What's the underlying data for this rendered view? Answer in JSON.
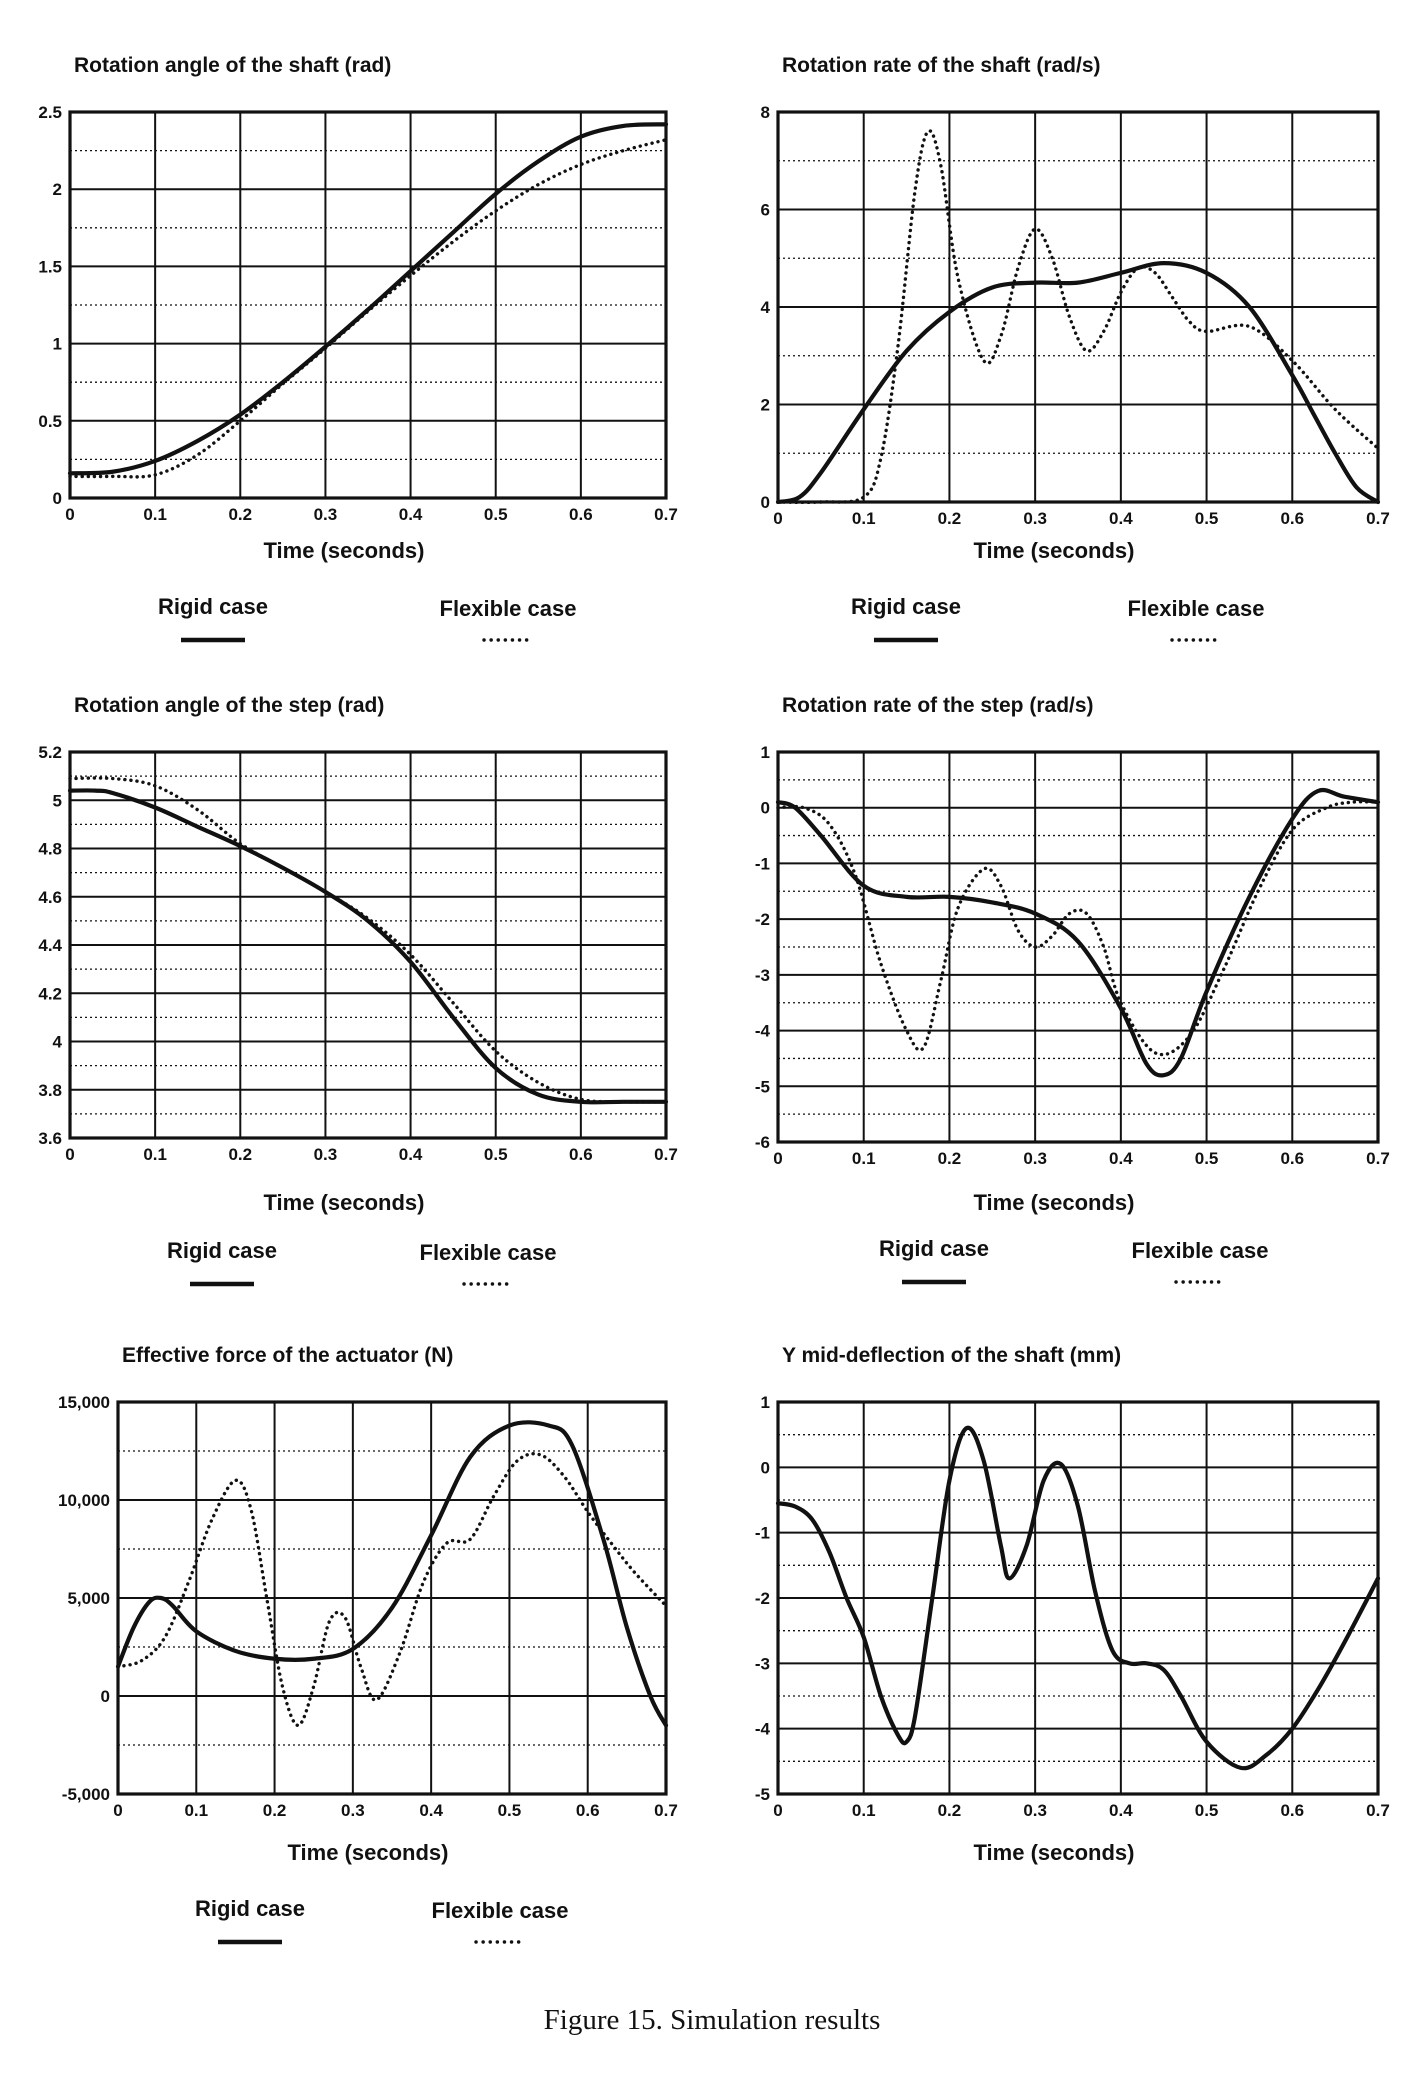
{
  "figure": {
    "caption": "Figure 15. Simulation results",
    "legend": {
      "rigid_label": "Rigid case",
      "flexible_label": "Flexible case"
    },
    "colors": {
      "ink": "#111111",
      "grid": "#111111",
      "background": "#ffffff"
    }
  },
  "chart_data": [
    {
      "type": "line",
      "title": "Rotation angle of the shaft (rad)",
      "xlabel": "Time (seconds)",
      "ylabel": "",
      "xlim": [
        0,
        0.7
      ],
      "ylim": [
        0,
        2.5
      ],
      "x_ticks": [
        0,
        0.1,
        0.2,
        0.3,
        0.4,
        0.5,
        0.6,
        0.7
      ],
      "x_tick_labels": [
        "0",
        "0.1",
        "0.2",
        "0.3",
        "0.4",
        "0.5",
        "0.6",
        "0.7"
      ],
      "y_ticks": [
        0,
        0.5,
        1,
        1.5,
        2,
        2.5
      ],
      "y_tick_labels": [
        "0",
        "0.5",
        "1",
        "1.5",
        "2",
        "2.5"
      ],
      "minor_y_step": 0.25,
      "legend": true,
      "series": [
        {
          "name": "Rigid case",
          "style": "solid",
          "x": [
            0,
            0.05,
            0.1,
            0.15,
            0.2,
            0.25,
            0.3,
            0.35,
            0.4,
            0.45,
            0.5,
            0.55,
            0.6,
            0.65,
            0.7
          ],
          "y": [
            0.16,
            0.17,
            0.24,
            0.37,
            0.54,
            0.75,
            0.98,
            1.22,
            1.47,
            1.72,
            1.97,
            2.18,
            2.34,
            2.41,
            2.42
          ]
        },
        {
          "name": "Flexible case",
          "style": "dotted",
          "x": [
            0,
            0.05,
            0.1,
            0.15,
            0.2,
            0.25,
            0.3,
            0.35,
            0.4,
            0.45,
            0.5,
            0.55,
            0.6,
            0.65,
            0.7
          ],
          "y": [
            0.14,
            0.14,
            0.15,
            0.28,
            0.5,
            0.74,
            0.97,
            1.21,
            1.44,
            1.66,
            1.86,
            2.03,
            2.16,
            2.25,
            2.32
          ]
        }
      ]
    },
    {
      "type": "line",
      "title": "Rotation rate of the shaft (rad/s)",
      "xlabel": "Time (seconds)",
      "ylabel": "",
      "xlim": [
        0,
        0.7
      ],
      "ylim": [
        0,
        8
      ],
      "x_ticks": [
        0,
        0.1,
        0.2,
        0.3,
        0.4,
        0.5,
        0.6,
        0.7
      ],
      "x_tick_labels": [
        "0",
        "0.1",
        "0.2",
        "0.3",
        "0.4",
        "0.5",
        "0.6",
        "0.7"
      ],
      "y_ticks": [
        0,
        2,
        4,
        6,
        8
      ],
      "y_tick_labels": [
        "0",
        "2",
        "4",
        "6",
        "8"
      ],
      "minor_y_step": 1,
      "legend": true,
      "series": [
        {
          "name": "Rigid case",
          "style": "solid",
          "x": [
            0,
            0.025,
            0.05,
            0.1,
            0.15,
            0.2,
            0.25,
            0.3,
            0.35,
            0.4,
            0.45,
            0.5,
            0.55,
            0.6,
            0.625,
            0.65,
            0.675,
            0.7
          ],
          "y": [
            0,
            0.1,
            0.6,
            1.9,
            3.1,
            3.9,
            4.4,
            4.5,
            4.5,
            4.7,
            4.9,
            4.7,
            4.0,
            2.6,
            1.8,
            1.0,
            0.3,
            0
          ]
        },
        {
          "name": "Flexible case",
          "style": "dotted",
          "x": [
            0,
            0.05,
            0.1,
            0.12,
            0.14,
            0.16,
            0.175,
            0.19,
            0.21,
            0.24,
            0.26,
            0.28,
            0.3,
            0.32,
            0.34,
            0.36,
            0.38,
            0.4,
            0.42,
            0.44,
            0.46,
            0.48,
            0.5,
            0.55,
            0.6,
            0.65,
            0.7
          ],
          "y": [
            0,
            0,
            0.1,
            0.9,
            3.2,
            6.4,
            7.6,
            6.9,
            4.6,
            2.9,
            3.4,
            4.8,
            5.6,
            5.0,
            3.8,
            3.1,
            3.5,
            4.3,
            4.8,
            4.7,
            4.2,
            3.7,
            3.5,
            3.6,
            2.9,
            1.9,
            1.1
          ]
        }
      ]
    },
    {
      "type": "line",
      "title": "Rotation angle of the step (rad)",
      "xlabel": "Time (seconds)",
      "ylabel": "",
      "xlim": [
        0,
        0.7
      ],
      "ylim": [
        3.6,
        5.2
      ],
      "x_ticks": [
        0,
        0.1,
        0.2,
        0.3,
        0.4,
        0.5,
        0.6,
        0.7
      ],
      "x_tick_labels": [
        "0",
        "0.1",
        "0.2",
        "0.3",
        "0.4",
        "0.5",
        "0.6",
        "0.7"
      ],
      "y_ticks": [
        3.6,
        3.8,
        4,
        4.2,
        4.4,
        4.6,
        4.8,
        5,
        5.2
      ],
      "y_tick_labels": [
        "3.6",
        "3.8",
        "4",
        "4.2",
        "4.4",
        "4.6",
        "4.8",
        "5",
        "5.2"
      ],
      "minor_y_step": 0.1,
      "legend": true,
      "series": [
        {
          "name": "Rigid case",
          "style": "solid",
          "x": [
            0,
            0.03,
            0.05,
            0.1,
            0.15,
            0.2,
            0.25,
            0.3,
            0.35,
            0.4,
            0.45,
            0.5,
            0.55,
            0.6,
            0.65,
            0.7
          ],
          "y": [
            5.04,
            5.04,
            5.03,
            4.97,
            4.89,
            4.81,
            4.72,
            4.62,
            4.5,
            4.33,
            4.1,
            3.89,
            3.78,
            3.75,
            3.75,
            3.75
          ]
        },
        {
          "name": "Flexible case",
          "style": "dotted",
          "x": [
            0,
            0.05,
            0.1,
            0.15,
            0.2,
            0.25,
            0.3,
            0.35,
            0.4,
            0.45,
            0.5,
            0.55,
            0.6,
            0.65,
            0.7
          ],
          "y": [
            5.09,
            5.09,
            5.06,
            4.96,
            4.82,
            4.72,
            4.62,
            4.51,
            4.36,
            4.16,
            3.96,
            3.83,
            3.76,
            3.75,
            3.75
          ]
        }
      ]
    },
    {
      "type": "line",
      "title": "Rotation rate of the step (rad/s)",
      "xlabel": "Time (seconds)",
      "ylabel": "",
      "xlim": [
        0,
        0.7
      ],
      "ylim": [
        -6,
        1
      ],
      "x_ticks": [
        0,
        0.1,
        0.2,
        0.3,
        0.4,
        0.5,
        0.6,
        0.7
      ],
      "x_tick_labels": [
        "0",
        "0.1",
        "0.2",
        "0.3",
        "0.4",
        "0.5",
        "0.6",
        "0.7"
      ],
      "y_ticks": [
        -6,
        -5,
        -4,
        -3,
        -2,
        -1,
        0,
        1
      ],
      "y_tick_labels": [
        "-6",
        "-5",
        "-4",
        "-3",
        "-2",
        "-1",
        "0",
        "1"
      ],
      "minor_y_step": 0.5,
      "legend": true,
      "series": [
        {
          "name": "Rigid case",
          "style": "solid",
          "x": [
            0,
            0.02,
            0.05,
            0.1,
            0.15,
            0.2,
            0.25,
            0.3,
            0.35,
            0.4,
            0.43,
            0.45,
            0.47,
            0.5,
            0.55,
            0.6,
            0.63,
            0.66,
            0.7
          ],
          "y": [
            0.1,
            0,
            -0.5,
            -1.4,
            -1.6,
            -1.6,
            -1.7,
            -1.9,
            -2.4,
            -3.6,
            -4.6,
            -4.8,
            -4.5,
            -3.3,
            -1.6,
            -0.2,
            0.3,
            0.2,
            0.1
          ]
        },
        {
          "name": "Flexible case",
          "style": "dotted",
          "x": [
            0,
            0.03,
            0.06,
            0.09,
            0.12,
            0.15,
            0.17,
            0.19,
            0.21,
            0.24,
            0.26,
            0.28,
            0.3,
            0.32,
            0.34,
            0.36,
            0.38,
            0.4,
            0.44,
            0.48,
            0.52,
            0.56,
            0.6,
            0.64,
            0.67,
            0.7
          ],
          "y": [
            0,
            0,
            -0.3,
            -1.2,
            -2.8,
            -4.0,
            -4.3,
            -3.1,
            -1.8,
            -1.1,
            -1.4,
            -2.2,
            -2.5,
            -2.3,
            -1.9,
            -1.9,
            -2.5,
            -3.5,
            -4.4,
            -4.1,
            -2.9,
            -1.5,
            -0.4,
            0,
            0.1,
            0.1
          ]
        }
      ]
    },
    {
      "type": "line",
      "title": "Effective force of the actuator (N)",
      "xlabel": "Time (seconds)",
      "ylabel": "",
      "xlim": [
        0,
        0.7
      ],
      "ylim": [
        -5000,
        15000
      ],
      "x_ticks": [
        0,
        0.1,
        0.2,
        0.3,
        0.4,
        0.5,
        0.6,
        0.7
      ],
      "x_tick_labels": [
        "0",
        "0.1",
        "0.2",
        "0.3",
        "0.4",
        "0.5",
        "0.6",
        "0.7"
      ],
      "y_ticks": [
        -5000,
        0,
        5000,
        10000,
        15000
      ],
      "y_tick_labels": [
        "-5,000",
        "0",
        "5,000",
        "10,000",
        "15,000"
      ],
      "minor_y_step": 2500,
      "legend": true,
      "series": [
        {
          "name": "Rigid case",
          "style": "solid",
          "x": [
            0,
            0.02,
            0.04,
            0.055,
            0.07,
            0.1,
            0.15,
            0.2,
            0.25,
            0.3,
            0.35,
            0.4,
            0.45,
            0.5,
            0.55,
            0.58,
            0.62,
            0.65,
            0.68,
            0.7
          ],
          "y": [
            1500,
            3500,
            4800,
            5000,
            4600,
            3300,
            2300,
            1900,
            1900,
            2400,
            4500,
            8200,
            12200,
            13800,
            13800,
            12800,
            8000,
            3500,
            0,
            -1500
          ]
        },
        {
          "name": "Flexible case",
          "style": "dotted",
          "x": [
            0,
            0.03,
            0.06,
            0.09,
            0.12,
            0.15,
            0.17,
            0.19,
            0.21,
            0.23,
            0.25,
            0.27,
            0.29,
            0.31,
            0.33,
            0.36,
            0.39,
            0.42,
            0.45,
            0.48,
            0.51,
            0.54,
            0.57,
            0.6,
            0.63,
            0.66,
            0.7
          ],
          "y": [
            1500,
            1800,
            3000,
            5800,
            9000,
            11000,
            9500,
            5000,
            500,
            -1500,
            500,
            3800,
            4000,
            1500,
            -200,
            2200,
            5800,
            7800,
            8000,
            10200,
            12000,
            12300,
            11200,
            9400,
            7800,
            6300,
            4600
          ]
        }
      ]
    },
    {
      "type": "line",
      "title": "Y mid-deflection of the shaft (mm)",
      "xlabel": "Time (seconds)",
      "ylabel": "",
      "xlim": [
        0,
        0.7
      ],
      "ylim": [
        -5,
        1
      ],
      "x_ticks": [
        0,
        0.1,
        0.2,
        0.3,
        0.4,
        0.5,
        0.6,
        0.7
      ],
      "x_tick_labels": [
        "0",
        "0.1",
        "0.2",
        "0.3",
        "0.4",
        "0.5",
        "0.6",
        "0.7"
      ],
      "y_ticks": [
        -5,
        -4,
        -3,
        -2,
        -1,
        0,
        1
      ],
      "y_tick_labels": [
        "-5",
        "-4",
        "-3",
        "-2",
        "-1",
        "0",
        "1"
      ],
      "minor_y_step": 0.5,
      "legend": false,
      "series": [
        {
          "name": "Y mid-deflection",
          "style": "solid",
          "x": [
            0,
            0.02,
            0.04,
            0.06,
            0.08,
            0.1,
            0.12,
            0.14,
            0.15,
            0.16,
            0.18,
            0.2,
            0.22,
            0.24,
            0.26,
            0.27,
            0.29,
            0.31,
            0.33,
            0.35,
            0.37,
            0.39,
            0.41,
            0.43,
            0.45,
            0.47,
            0.5,
            0.54,
            0.57,
            0.6,
            0.63,
            0.66,
            0.7
          ],
          "y": [
            -0.55,
            -0.6,
            -0.8,
            -1.3,
            -2.0,
            -2.6,
            -3.5,
            -4.1,
            -4.2,
            -3.8,
            -2.0,
            -0.2,
            0.6,
            0.1,
            -1.2,
            -1.7,
            -1.2,
            -0.2,
            0.05,
            -0.6,
            -1.9,
            -2.8,
            -3.0,
            -3.0,
            -3.1,
            -3.5,
            -4.2,
            -4.6,
            -4.4,
            -4.0,
            -3.4,
            -2.7,
            -1.7
          ]
        }
      ]
    }
  ]
}
